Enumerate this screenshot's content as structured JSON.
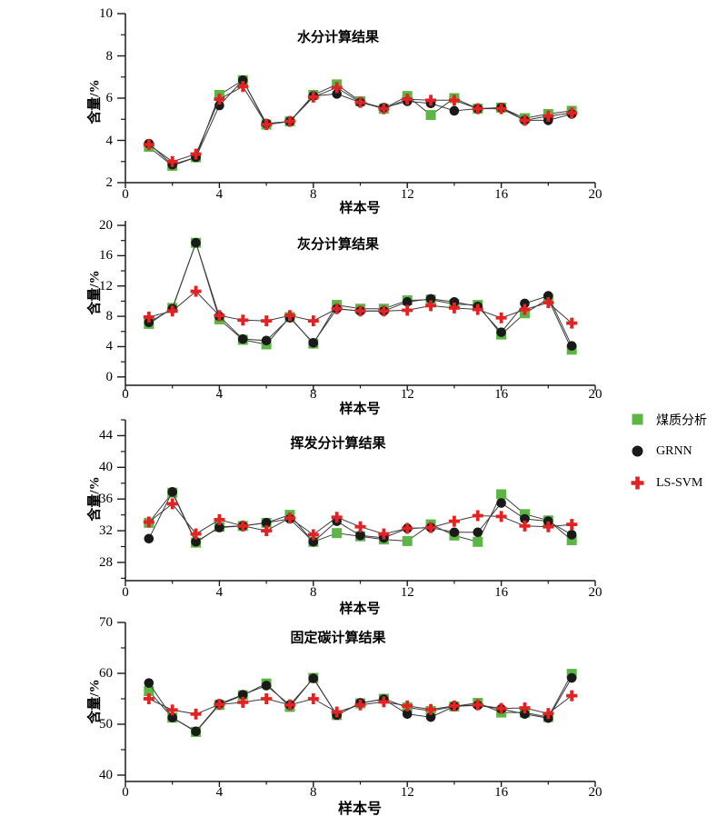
{
  "legend": {
    "items": [
      {
        "label": "煤质分析",
        "marker": "square",
        "color": "#5cb544"
      },
      {
        "label": "GRNN",
        "marker": "circle",
        "color": "#1a1a1a"
      },
      {
        "label": "LS-SVM",
        "marker": "cross",
        "color": "#e32224"
      }
    ],
    "position": "right-middle"
  },
  "style": {
    "axis_color": "#1a1a1a",
    "series_line_color": "#3c3c3c",
    "background": "#ffffff"
  },
  "chart_data": [
    {
      "type": "line",
      "title": "水分计算结果",
      "xlabel": "样本号",
      "ylabel": "含量/%",
      "x": [
        1,
        2,
        3,
        4,
        5,
        6,
        7,
        8,
        9,
        10,
        11,
        12,
        13,
        14,
        15,
        16,
        17,
        18,
        19
      ],
      "xlim": [
        0,
        20
      ],
      "xticks": [
        0,
        4,
        8,
        12,
        16,
        20
      ],
      "ylim": [
        2,
        10
      ],
      "yticks": [
        2,
        4,
        6,
        8,
        10
      ],
      "grid": false,
      "series": [
        {
          "name": "煤质分析",
          "values": [
            3.7,
            2.8,
            3.2,
            6.15,
            6.85,
            4.75,
            4.9,
            6.15,
            6.65,
            5.85,
            5.5,
            6.1,
            5.2,
            6.0,
            5.5,
            5.55,
            5.05,
            5.25,
            5.4
          ]
        },
        {
          "name": "GRNN",
          "values": [
            3.85,
            2.85,
            3.2,
            5.65,
            6.85,
            4.8,
            4.9,
            6.1,
            6.2,
            5.8,
            5.55,
            5.85,
            5.75,
            5.4,
            5.5,
            5.55,
            4.95,
            4.95,
            5.25
          ]
        },
        {
          "name": "LS-SVM",
          "values": [
            3.8,
            3.0,
            3.35,
            5.95,
            6.55,
            4.75,
            4.9,
            6.05,
            6.5,
            5.8,
            5.5,
            5.95,
            5.9,
            5.9,
            5.5,
            5.5,
            4.95,
            5.15,
            5.3
          ]
        }
      ]
    },
    {
      "type": "line",
      "title": "灰分计算结果",
      "xlabel": "样本号",
      "ylabel": "含量/%",
      "x": [
        1,
        2,
        3,
        4,
        5,
        6,
        7,
        8,
        9,
        10,
        11,
        12,
        13,
        14,
        15,
        16,
        17,
        18,
        19
      ],
      "xlim": [
        0,
        20
      ],
      "xticks": [
        0,
        4,
        8,
        12,
        16,
        20
      ],
      "ylim": [
        -1.1,
        20.6
      ],
      "yticks": [
        0,
        4,
        8,
        12,
        16,
        20
      ],
      "grid": false,
      "series": [
        {
          "name": "煤质分析",
          "values": [
            7.0,
            9.1,
            17.7,
            7.6,
            4.9,
            4.3,
            7.9,
            4.4,
            9.5,
            9.0,
            9.0,
            10.1,
            10.2,
            9.6,
            9.5,
            5.6,
            8.4,
            10.3,
            3.6
          ]
        },
        {
          "name": "GRNN",
          "values": [
            7.2,
            9.0,
            17.7,
            8.0,
            5.0,
            4.8,
            7.8,
            4.5,
            9.0,
            8.7,
            8.7,
            9.9,
            10.3,
            9.9,
            9.3,
            5.9,
            9.7,
            10.7,
            4.1
          ]
        },
        {
          "name": "LS-SVM",
          "values": [
            7.9,
            8.7,
            11.3,
            8.1,
            7.5,
            7.4,
            8.1,
            7.4,
            9.0,
            8.7,
            8.7,
            8.8,
            9.4,
            9.1,
            8.9,
            7.8,
            8.9,
            9.8,
            7.1
          ]
        }
      ]
    },
    {
      "type": "line",
      "title": "挥发分计算结果",
      "xlabel": "样本号",
      "ylabel": "含量/%",
      "x": [
        1,
        2,
        3,
        4,
        5,
        6,
        7,
        8,
        9,
        10,
        11,
        12,
        13,
        14,
        15,
        16,
        17,
        18,
        19
      ],
      "xlim": [
        0,
        20
      ],
      "xticks": [
        0,
        4,
        8,
        12,
        16,
        20
      ],
      "ylim": [
        25.7,
        46.0
      ],
      "yticks": [
        28,
        32,
        36,
        40,
        44
      ],
      "grid": false,
      "series": [
        {
          "name": "煤质分析",
          "values": [
            33.0,
            36.8,
            30.5,
            32.5,
            32.6,
            33.0,
            34.0,
            30.6,
            31.7,
            31.3,
            30.9,
            30.7,
            32.8,
            31.4,
            30.6,
            36.6,
            34.1,
            33.3,
            30.8
          ]
        },
        {
          "name": "GRNN",
          "values": [
            31.0,
            36.9,
            30.6,
            32.4,
            32.6,
            33.0,
            33.5,
            30.6,
            33.2,
            31.4,
            31.1,
            32.3,
            32.4,
            31.8,
            31.8,
            35.5,
            33.5,
            33.2,
            31.5
          ]
        },
        {
          "name": "LS-SVM",
          "values": [
            33.1,
            35.4,
            31.6,
            33.4,
            32.6,
            32.0,
            33.6,
            31.5,
            33.7,
            32.5,
            31.6,
            32.3,
            32.4,
            33.2,
            33.9,
            33.8,
            32.6,
            32.5,
            32.8
          ]
        }
      ]
    },
    {
      "type": "line",
      "title": "固定碳计算结果",
      "xlabel": "样本号",
      "ylabel": "含量/%",
      "x": [
        1,
        2,
        3,
        4,
        5,
        6,
        7,
        8,
        9,
        10,
        11,
        12,
        13,
        14,
        15,
        16,
        17,
        18,
        19
      ],
      "xlim": [
        0,
        20
      ],
      "xticks": [
        0,
        4,
        8,
        12,
        16,
        20
      ],
      "ylim": [
        38.75,
        70
      ],
      "yticks": [
        40,
        50,
        60,
        70
      ],
      "grid": false,
      "series": [
        {
          "name": "煤质分析",
          "values": [
            56.5,
            51.3,
            48.5,
            53.8,
            55.7,
            58.0,
            53.4,
            59.1,
            51.8,
            54.1,
            55.0,
            53.3,
            52.6,
            53.5,
            54.2,
            52.3,
            52.3,
            51.4,
            59.9
          ]
        },
        {
          "name": "GRNN",
          "values": [
            58.1,
            51.3,
            48.6,
            54.0,
            55.8,
            57.6,
            53.8,
            59.0,
            51.8,
            54.2,
            54.9,
            52.0,
            51.4,
            53.5,
            53.7,
            53.0,
            52.0,
            51.2,
            59.1
          ]
        },
        {
          "name": "LS-SVM",
          "values": [
            55.0,
            52.8,
            52.0,
            53.9,
            54.3,
            55.0,
            53.8,
            55.0,
            52.4,
            53.8,
            54.4,
            53.6,
            52.9,
            53.6,
            53.8,
            53.1,
            53.2,
            52.1,
            55.6
          ]
        }
      ]
    }
  ]
}
